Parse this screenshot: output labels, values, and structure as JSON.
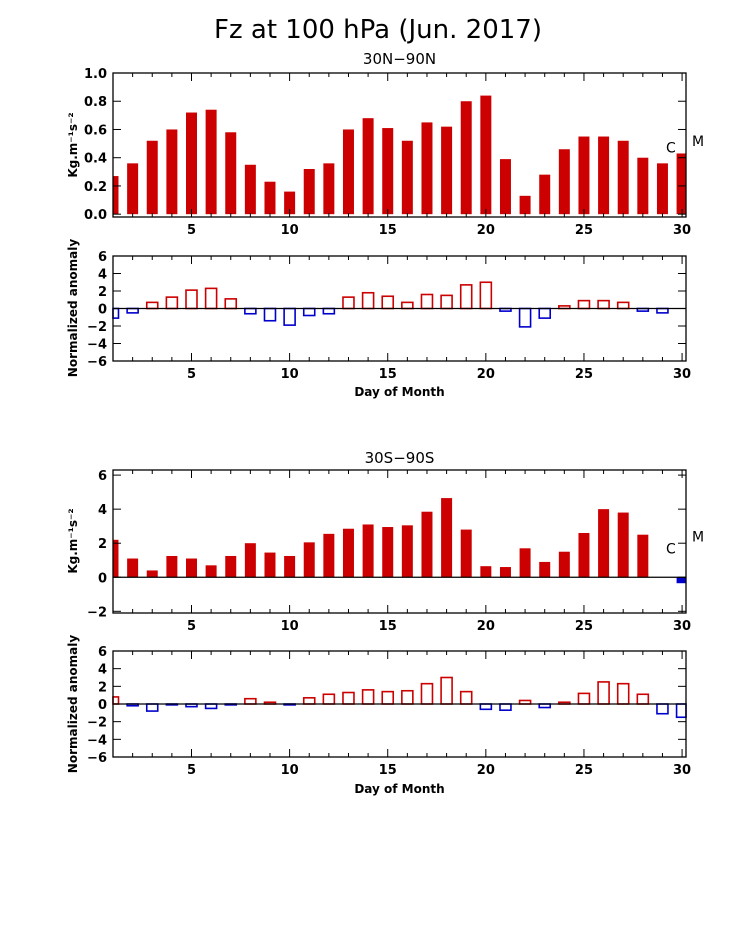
{
  "title": "Fz at 100 hPa (Jun. 2017)",
  "colors": {
    "positive": "#cc0000",
    "negative": "#0000cc"
  },
  "chart_data": [
    {
      "type": "bar",
      "subtitle": "30N−90N",
      "ylabel": "Kg.m⁻¹s⁻²",
      "xlim": [
        1,
        30.2
      ],
      "ylim": [
        -0.02,
        1.0
      ],
      "yticks": [
        "0.0",
        "0.2",
        "0.4",
        "0.6",
        "0.8",
        "1.0"
      ],
      "xticks": [
        "5",
        "10",
        "15",
        "20",
        "25",
        "30"
      ],
      "x": [
        1,
        2,
        3,
        4,
        5,
        6,
        7,
        8,
        9,
        10,
        11,
        12,
        13,
        14,
        15,
        16,
        17,
        18,
        19,
        20,
        21,
        22,
        23,
        24,
        25,
        26,
        27,
        28,
        29,
        30
      ],
      "values": [
        0.27,
        0.36,
        0.52,
        0.6,
        0.72,
        0.74,
        0.58,
        0.35,
        0.23,
        0.16,
        0.32,
        0.36,
        0.6,
        0.68,
        0.61,
        0.52,
        0.65,
        0.62,
        0.8,
        0.84,
        0.39,
        0.13,
        0.28,
        0.46,
        0.55,
        0.55,
        0.52,
        0.4,
        0.36,
        0.43
      ],
      "markers": [
        {
          "label": "C",
          "value": 0.48
        },
        {
          "label": "M",
          "value": 0.52
        }
      ]
    },
    {
      "type": "bar",
      "ylabel": "Normalized anomaly",
      "xlabel": "Day of Month",
      "xlim": [
        1,
        30.2
      ],
      "ylim": [
        -6,
        6
      ],
      "yticks": [
        "−6",
        "−4",
        "−2",
        "0",
        "2",
        "4",
        "6"
      ],
      "xticks": [
        "5",
        "10",
        "15",
        "20",
        "25",
        "30"
      ],
      "x": [
        1,
        2,
        3,
        4,
        5,
        6,
        7,
        8,
        9,
        10,
        11,
        12,
        13,
        14,
        15,
        16,
        17,
        18,
        19,
        20,
        21,
        22,
        23,
        24,
        25,
        26,
        27,
        28,
        29,
        30
      ],
      "values": [
        -1.1,
        -0.5,
        0.7,
        1.3,
        2.1,
        2.3,
        1.1,
        -0.6,
        -1.4,
        -1.9,
        -0.8,
        -0.6,
        1.3,
        1.8,
        1.4,
        0.7,
        1.6,
        1.5,
        2.7,
        3.0,
        -0.3,
        -2.1,
        -1.1,
        0.3,
        0.9,
        0.9,
        0.7,
        -0.3,
        -0.5,
        0.0
      ]
    },
    {
      "type": "bar",
      "subtitle": "30S−90S",
      "ylabel": "Kg.m⁻¹s⁻²",
      "xlim": [
        1,
        30.2
      ],
      "ylim": [
        -2.1,
        6.3
      ],
      "yticks": [
        "−2",
        "0",
        "2",
        "4",
        "6"
      ],
      "xticks": [
        "5",
        "10",
        "15",
        "20",
        "25",
        "30"
      ],
      "x": [
        1,
        2,
        3,
        4,
        5,
        6,
        7,
        8,
        9,
        10,
        11,
        12,
        13,
        14,
        15,
        16,
        17,
        18,
        19,
        20,
        21,
        22,
        23,
        24,
        25,
        26,
        27,
        28,
        29,
        30
      ],
      "values": [
        2.2,
        1.1,
        0.4,
        1.25,
        1.1,
        0.7,
        1.25,
        2.0,
        1.45,
        1.25,
        2.05,
        2.55,
        2.85,
        3.1,
        2.95,
        3.05,
        3.85,
        4.65,
        2.8,
        0.65,
        0.6,
        1.7,
        0.9,
        1.5,
        2.6,
        4.0,
        3.8,
        2.5,
        0,
        -0.35
      ],
      "markers": [
        {
          "label": "M",
          "value": 2.4
        },
        {
          "label": "C",
          "value": 1.7
        }
      ]
    },
    {
      "type": "bar",
      "ylabel": "Normalized anomaly",
      "xlabel": "Day of Month",
      "xlim": [
        1,
        30.2
      ],
      "ylim": [
        -6,
        6
      ],
      "yticks": [
        "−6",
        "−4",
        "−2",
        "0",
        "2",
        "4",
        "6"
      ],
      "xticks": [
        "5",
        "10",
        "15",
        "20",
        "25",
        "30"
      ],
      "x": [
        1,
        2,
        3,
        4,
        5,
        6,
        7,
        8,
        9,
        10,
        11,
        12,
        13,
        14,
        15,
        16,
        17,
        18,
        19,
        20,
        21,
        22,
        23,
        24,
        25,
        26,
        27,
        28,
        29,
        30
      ],
      "values": [
        0.8,
        -0.2,
        -0.8,
        -0.1,
        -0.3,
        -0.5,
        -0.1,
        0.6,
        0.2,
        -0.1,
        0.7,
        1.1,
        1.3,
        1.6,
        1.4,
        1.5,
        2.3,
        3.0,
        1.4,
        -0.6,
        -0.7,
        0.4,
        -0.4,
        0.2,
        1.2,
        2.5,
        2.3,
        1.1,
        -1.1,
        -1.5
      ]
    }
  ]
}
